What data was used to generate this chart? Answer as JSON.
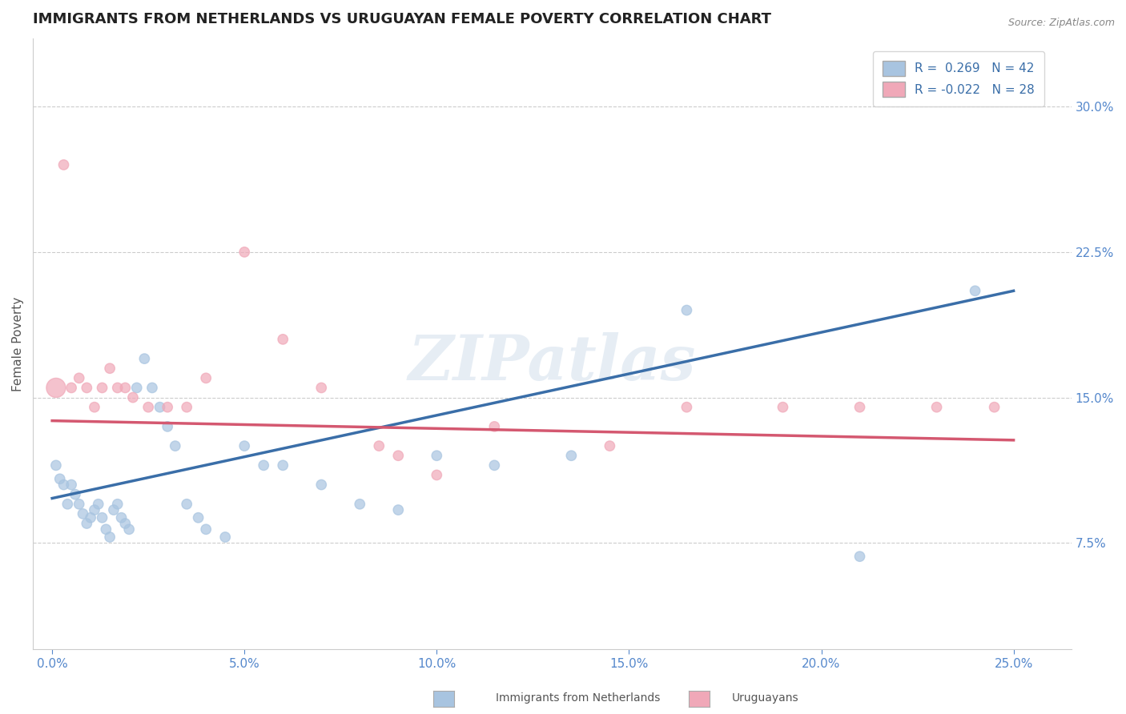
{
  "title": "IMMIGRANTS FROM NETHERLANDS VS URUGUAYAN FEMALE POVERTY CORRELATION CHART",
  "source": "Source: ZipAtlas.com",
  "ylabel_label": "Female Poverty",
  "x_ticks": [
    0.0,
    0.05,
    0.1,
    0.15,
    0.2,
    0.25
  ],
  "x_tick_labels": [
    "0.0%",
    "5.0%",
    "10.0%",
    "15.0%",
    "20.0%",
    "25.0%"
  ],
  "y_ticks": [
    0.075,
    0.15,
    0.225,
    0.3
  ],
  "y_tick_labels": [
    "7.5%",
    "15.0%",
    "22.5%",
    "30.0%"
  ],
  "xlim": [
    -0.005,
    0.265
  ],
  "ylim": [
    0.02,
    0.335
  ],
  "legend_r1": "R =  0.269   N = 42",
  "legend_r2": "R = -0.022   N = 28",
  "blue_color": "#a8c4e0",
  "pink_color": "#f0a8b8",
  "blue_line_color": "#3a6ea8",
  "pink_line_color": "#d45870",
  "watermark": "ZIPatlas",
  "blue_points": [
    [
      0.001,
      0.115
    ],
    [
      0.002,
      0.108
    ],
    [
      0.003,
      0.105
    ],
    [
      0.004,
      0.095
    ],
    [
      0.005,
      0.105
    ],
    [
      0.006,
      0.1
    ],
    [
      0.007,
      0.095
    ],
    [
      0.008,
      0.09
    ],
    [
      0.009,
      0.085
    ],
    [
      0.01,
      0.088
    ],
    [
      0.011,
      0.092
    ],
    [
      0.012,
      0.095
    ],
    [
      0.013,
      0.088
    ],
    [
      0.014,
      0.082
    ],
    [
      0.015,
      0.078
    ],
    [
      0.016,
      0.092
    ],
    [
      0.017,
      0.095
    ],
    [
      0.018,
      0.088
    ],
    [
      0.019,
      0.085
    ],
    [
      0.02,
      0.082
    ],
    [
      0.022,
      0.155
    ],
    [
      0.024,
      0.17
    ],
    [
      0.026,
      0.155
    ],
    [
      0.028,
      0.145
    ],
    [
      0.03,
      0.135
    ],
    [
      0.032,
      0.125
    ],
    [
      0.035,
      0.095
    ],
    [
      0.038,
      0.088
    ],
    [
      0.04,
      0.082
    ],
    [
      0.045,
      0.078
    ],
    [
      0.05,
      0.125
    ],
    [
      0.055,
      0.115
    ],
    [
      0.06,
      0.115
    ],
    [
      0.07,
      0.105
    ],
    [
      0.08,
      0.095
    ],
    [
      0.09,
      0.092
    ],
    [
      0.1,
      0.12
    ],
    [
      0.115,
      0.115
    ],
    [
      0.135,
      0.12
    ],
    [
      0.165,
      0.195
    ],
    [
      0.21,
      0.068
    ],
    [
      0.24,
      0.205
    ]
  ],
  "blue_sizes": [
    80,
    80,
    80,
    80,
    80,
    80,
    80,
    80,
    80,
    80,
    80,
    80,
    80,
    80,
    80,
    80,
    80,
    80,
    80,
    80,
    80,
    80,
    80,
    80,
    80,
    80,
    80,
    80,
    80,
    80,
    80,
    80,
    80,
    80,
    80,
    80,
    80,
    80,
    80,
    80,
    80,
    80
  ],
  "pink_points": [
    [
      0.001,
      0.155
    ],
    [
      0.003,
      0.27
    ],
    [
      0.005,
      0.155
    ],
    [
      0.007,
      0.16
    ],
    [
      0.009,
      0.155
    ],
    [
      0.011,
      0.145
    ],
    [
      0.013,
      0.155
    ],
    [
      0.015,
      0.165
    ],
    [
      0.017,
      0.155
    ],
    [
      0.019,
      0.155
    ],
    [
      0.021,
      0.15
    ],
    [
      0.025,
      0.145
    ],
    [
      0.03,
      0.145
    ],
    [
      0.035,
      0.145
    ],
    [
      0.04,
      0.16
    ],
    [
      0.05,
      0.225
    ],
    [
      0.06,
      0.18
    ],
    [
      0.07,
      0.155
    ],
    [
      0.085,
      0.125
    ],
    [
      0.09,
      0.12
    ],
    [
      0.1,
      0.11
    ],
    [
      0.115,
      0.135
    ],
    [
      0.145,
      0.125
    ],
    [
      0.165,
      0.145
    ],
    [
      0.19,
      0.145
    ],
    [
      0.21,
      0.145
    ],
    [
      0.23,
      0.145
    ],
    [
      0.245,
      0.145
    ]
  ],
  "pink_sizes": [
    300,
    80,
    80,
    80,
    80,
    80,
    80,
    80,
    80,
    80,
    80,
    80,
    80,
    80,
    80,
    80,
    80,
    80,
    80,
    80,
    80,
    80,
    80,
    80,
    80,
    80,
    80,
    80
  ],
  "blue_trend_x": [
    0.0,
    0.25
  ],
  "blue_trend_y": [
    0.098,
    0.205
  ],
  "pink_trend_x": [
    0.0,
    0.25
  ],
  "pink_trend_y": [
    0.138,
    0.128
  ],
  "grid_color": "#cccccc",
  "background_color": "#ffffff",
  "title_fontsize": 13,
  "axis_label_fontsize": 11,
  "tick_fontsize": 11,
  "legend_fontsize": 11,
  "legend_title_color": "#3a6ea8"
}
